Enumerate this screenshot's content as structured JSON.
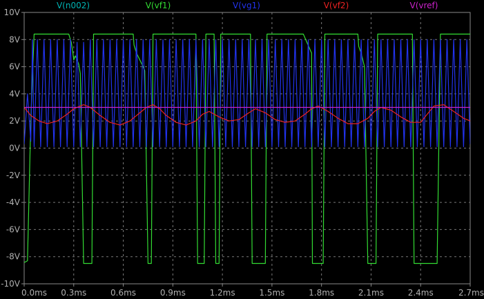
{
  "chart_data": {
    "type": "line",
    "title": "",
    "xlabel": "",
    "ylabel": "",
    "xlim": [
      0,
      2.7
    ],
    "ylim": [
      -10,
      10
    ],
    "grid": true,
    "legend_position": "top",
    "x_ticks": [
      "0.0ms",
      "0.3ms",
      "0.6ms",
      "0.9ms",
      "1.2ms",
      "1.5ms",
      "1.8ms",
      "2.1ms",
      "2.4ms",
      "2.7ms"
    ],
    "y_ticks": [
      "10V",
      "8V",
      "6V",
      "4V",
      "2V",
      "0V",
      "-2V",
      "-4V",
      "-6V",
      "-8V",
      "-10V"
    ],
    "series": [
      {
        "name": "V(n002)",
        "color": "#00b3b3",
        "x": [],
        "y": []
      },
      {
        "name": "V(vf1)",
        "color": "#33dd33",
        "x": [
          0,
          0.005,
          0.02,
          0.04,
          0.06,
          0.08,
          0.27,
          0.285,
          0.295,
          0.3,
          0.31,
          0.33,
          0.34,
          0.36,
          0.38,
          0.39,
          0.41,
          0.42,
          0.66,
          0.665,
          0.68,
          0.7,
          0.72,
          0.73,
          0.75,
          0.765,
          0.77,
          0.78,
          0.8,
          0.83,
          0.84,
          0.86,
          1.04,
          1.05,
          1.06,
          1.08,
          1.09,
          1.1,
          1.15,
          1.16,
          1.17,
          1.18,
          1.19,
          1.37,
          1.38,
          1.39,
          1.45,
          1.46,
          1.47,
          1.48,
          1.49,
          1.67,
          1.68,
          1.69,
          1.74,
          1.745,
          1.78,
          1.81,
          1.82,
          1.83,
          2.02,
          2.025,
          2.04,
          2.06,
          2.08,
          2.09,
          2.1,
          2.12,
          2.13,
          2.14,
          2.15,
          2.16,
          2.17,
          2.35,
          2.36,
          2.37,
          2.4,
          2.42,
          2.44,
          2.46,
          2.48,
          2.49,
          2.5,
          2.52,
          2.53,
          2.54,
          2.7
        ],
        "y": [
          -8.4,
          -8.4,
          -8.3,
          2.0,
          8.4,
          8.4,
          8.4,
          7.8,
          7.0,
          6.5,
          6.8,
          6.2,
          5.5,
          -8.5,
          -8.5,
          -8.5,
          -8.5,
          8.4,
          8.4,
          7.6,
          7.0,
          6.5,
          6.0,
          5.7,
          -8.5,
          -8.5,
          -8.5,
          8.4,
          8.4,
          8.4,
          8.4,
          8.4,
          8.4,
          -8.5,
          -8.5,
          -8.5,
          -8.5,
          8.4,
          8.4,
          -8.5,
          -8.5,
          -8.5,
          8.4,
          8.4,
          -8.5,
          -8.5,
          -8.5,
          -8.5,
          8.4,
          8.4,
          8.4,
          8.4,
          8.4,
          8.4,
          7.0,
          -8.5,
          -8.5,
          -8.5,
          8.4,
          8.4,
          8.4,
          7.5,
          7.0,
          6.0,
          -8.5,
          -8.5,
          -8.5,
          -8.5,
          -8.5,
          8.4,
          8.4,
          8.4,
          8.4,
          8.4,
          -8.5,
          -8.5,
          -8.5,
          -8.5,
          -8.5,
          -8.5,
          -8.5,
          -8.5,
          -8.5,
          8.4,
          8.4,
          8.4,
          8.4
        ]
      },
      {
        "name": "V(vg1)",
        "color": "#2233ee",
        "x": [
          0,
          0.02,
          0.04,
          0.05,
          0.06,
          0.08,
          0.1,
          0.12,
          0.14,
          0.16,
          0.18,
          0.2,
          0.22,
          0.24,
          0.26,
          0.28,
          0.3,
          0.32,
          0.34,
          0.36,
          0.38,
          0.4,
          0.42,
          0.44,
          0.46,
          0.48,
          0.5,
          0.52,
          0.54,
          0.56,
          0.58,
          0.6,
          0.62,
          0.64,
          0.66,
          0.68,
          0.7,
          0.72,
          0.74,
          0.76,
          0.78,
          0.8,
          0.82,
          0.84,
          0.86,
          0.88,
          0.9,
          0.92,
          0.94,
          0.96,
          0.98,
          1.0,
          1.02,
          1.04,
          1.06,
          1.08,
          1.1,
          1.12,
          1.14,
          1.16,
          1.18,
          1.2,
          1.22,
          1.24,
          1.26,
          1.28,
          1.3,
          1.32,
          1.34,
          1.36,
          1.38,
          1.4,
          1.42,
          1.44,
          1.46,
          1.48,
          1.5,
          1.52,
          1.54,
          1.56,
          1.58,
          1.6,
          1.62,
          1.64,
          1.66,
          1.68,
          1.7,
          1.72,
          1.74,
          1.76,
          1.78,
          1.8,
          1.82,
          1.84,
          1.86,
          1.88,
          1.9,
          1.92,
          1.94,
          1.96,
          1.98,
          2.0,
          2.02,
          2.04,
          2.06,
          2.08,
          2.1,
          2.12,
          2.14,
          2.16,
          2.18,
          2.2,
          2.22,
          2.24,
          2.26,
          2.28,
          2.3,
          2.32,
          2.34,
          2.36,
          2.38,
          2.4,
          2.42,
          2.44,
          2.46,
          2.48,
          2.5,
          2.52,
          2.54,
          2.56,
          2.58,
          2.6,
          2.62,
          2.64,
          2.66,
          2.68,
          2.7
        ],
        "y": [
          0.3,
          4.0,
          0.5,
          8.0,
          0.1,
          8.0,
          0.1,
          8.0,
          0.1,
          8.0,
          0.1,
          8.0,
          0.1,
          8.0,
          0.1,
          8.0,
          0.1,
          7.8,
          0.1,
          7.8,
          0.1,
          8.0,
          0.1,
          8.0,
          0.1,
          8.0,
          0.1,
          8.0,
          0.1,
          8.0,
          0.1,
          8.0,
          0.1,
          8.0,
          0.1,
          8.0,
          0.1,
          8.0,
          0.1,
          8.0,
          0.1,
          8.0,
          0.1,
          8.0,
          0.1,
          8.0,
          0.1,
          8.0,
          0.1,
          8.0,
          0.1,
          8.0,
          0.1,
          8.0,
          0.1,
          8.0,
          0.1,
          8.0,
          0.1,
          8.0,
          0.1,
          8.0,
          0.1,
          8.0,
          0.1,
          8.0,
          0.1,
          8.0,
          0.1,
          8.0,
          0.1,
          8.0,
          0.1,
          8.0,
          0.1,
          8.0,
          0.1,
          8.0,
          0.1,
          8.0,
          0.1,
          8.0,
          0.1,
          8.0,
          0.1,
          8.0,
          0.1,
          8.0,
          0.1,
          8.0,
          0.1,
          8.0,
          0.1,
          8.0,
          0.1,
          8.0,
          0.1,
          8.0,
          0.1,
          8.0,
          0.1,
          8.0,
          0.1,
          8.0,
          0.1,
          8.0,
          0.1,
          8.0,
          0.1,
          8.0,
          0.1,
          8.0,
          0.1,
          8.0,
          0.1,
          8.0,
          0.1,
          8.0,
          0.1,
          8.0,
          0.1,
          8.0,
          0.1,
          8.0,
          0.1,
          8.0,
          0.1,
          8.0,
          0.1,
          8.0,
          0.1,
          8.0,
          0.1,
          8.0,
          0.1,
          8.0,
          0.3
        ]
      },
      {
        "name": "V(vf2)",
        "color": "#ee2222",
        "x": [
          0,
          0.04,
          0.09,
          0.14,
          0.2,
          0.26,
          0.3,
          0.36,
          0.4,
          0.46,
          0.52,
          0.58,
          0.64,
          0.7,
          0.74,
          0.78,
          0.82,
          0.86,
          0.92,
          0.98,
          1.04,
          1.08,
          1.12,
          1.18,
          1.24,
          1.3,
          1.36,
          1.4,
          1.46,
          1.52,
          1.58,
          1.64,
          1.7,
          1.74,
          1.78,
          1.84,
          1.9,
          1.96,
          2.02,
          2.08,
          2.12,
          2.16,
          2.22,
          2.28,
          2.34,
          2.4,
          2.44,
          2.48,
          2.54,
          2.6,
          2.66,
          2.7
        ],
        "y": [
          3.0,
          2.4,
          2.0,
          1.8,
          2.0,
          2.5,
          2.9,
          3.2,
          3.0,
          2.4,
          1.9,
          1.7,
          2.0,
          2.6,
          3.0,
          3.2,
          2.9,
          2.4,
          1.9,
          1.7,
          2.0,
          2.5,
          2.7,
          2.3,
          2.0,
          2.1,
          2.6,
          2.9,
          2.6,
          2.1,
          1.9,
          2.0,
          2.5,
          2.9,
          3.1,
          2.7,
          2.2,
          1.8,
          1.8,
          2.2,
          2.7,
          3.0,
          2.8,
          2.3,
          1.9,
          1.9,
          2.5,
          3.1,
          3.2,
          2.7,
          2.2,
          2.0
        ]
      },
      {
        "name": "V(vref)",
        "color": "#cc22cc",
        "x": [
          0,
          2.7
        ],
        "y": [
          3.0,
          3.0
        ]
      }
    ]
  }
}
